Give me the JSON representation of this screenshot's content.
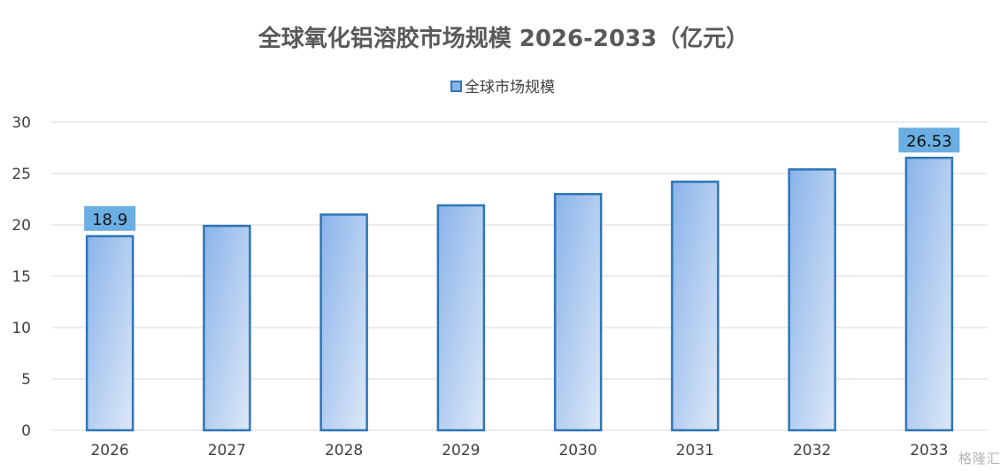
{
  "chart_data": {
    "type": "bar",
    "title": "全球氧化铝溶胶市场规模 2026-2033（亿元）",
    "legend_position": "top",
    "series": [
      {
        "name": "全球市场规模",
        "values": [
          18.9,
          19.9,
          21.0,
          21.9,
          23.0,
          24.2,
          25.4,
          26.53
        ],
        "data_labels": [
          "18.9",
          "",
          "",
          "",
          "",
          "",
          "",
          "26.53"
        ]
      }
    ],
    "categories": [
      "2026",
      "2027",
      "2028",
      "2029",
      "2030",
      "2031",
      "2032",
      "2033"
    ],
    "ylim": [
      0,
      30
    ],
    "yticks": [
      0,
      5,
      10,
      15,
      20,
      25,
      30
    ],
    "grid": true,
    "colors": {
      "bar_top": "#8ab4ea",
      "bar_bottom": "#dde8f7",
      "bar_stroke": "#2e75b6",
      "label_bg": "#6aaee3",
      "grid": "#d9d9d9",
      "text": "#404040",
      "title": "#595959"
    }
  },
  "watermark": "格隆汇"
}
